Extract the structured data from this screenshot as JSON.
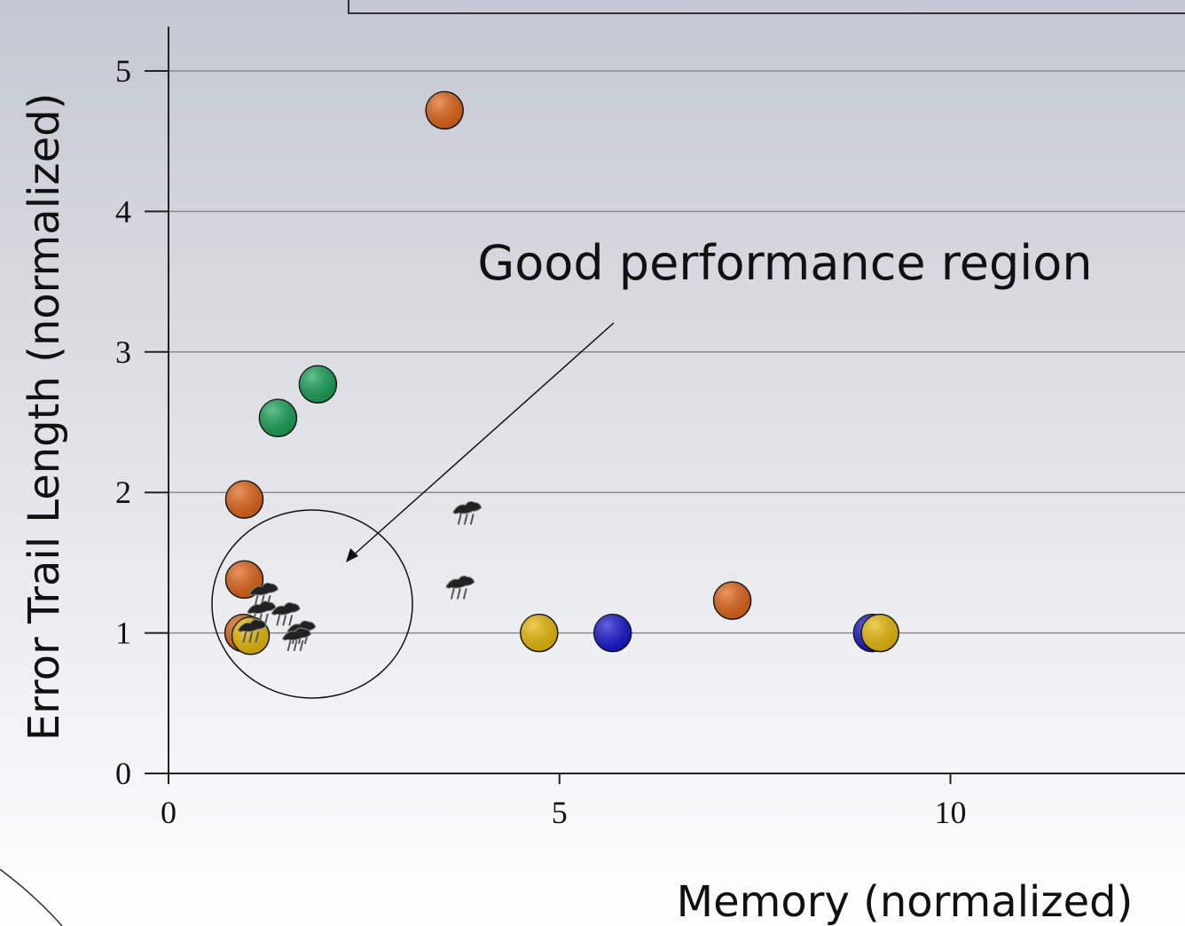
{
  "chart_data": {
    "type": "scatter",
    "x_label": "Memory (normalized)",
    "y_label": "Error Trail Length (normalized)",
    "annotation": "Good performance region",
    "xlim": [
      0,
      13
    ],
    "ylim": [
      0,
      5.3
    ],
    "xticks": [
      0,
      5,
      10
    ],
    "yticks": [
      0,
      1,
      2,
      3,
      4,
      5
    ],
    "grid": true,
    "series": [
      {
        "color": "#e06010",
        "marker": "circle",
        "x": [
          3.53,
          0.97,
          0.97,
          0.96,
          7.21
        ],
        "values": [
          4.72,
          1.95,
          1.38,
          1.0,
          1.23
        ]
      },
      {
        "color": "#10a050",
        "marker": "circle",
        "x": [
          1.4,
          1.91
        ],
        "values": [
          2.53,
          2.77
        ]
      },
      {
        "color": "#1010d0",
        "marker": "circle",
        "x": [
          5.68,
          9.0
        ],
        "values": [
          1.0,
          1.0
        ]
      },
      {
        "color": "#e8b800",
        "marker": "circle",
        "x": [
          1.05,
          4.74,
          9.1
        ],
        "values": [
          0.98,
          1.0,
          1.0
        ]
      },
      {
        "color": "#222222",
        "marker": "ant",
        "x": [
          3.82,
          3.73,
          1.22,
          1.19,
          1.5,
          1.07,
          1.7,
          1.64
        ],
        "values": [
          1.86,
          1.33,
          1.28,
          1.15,
          1.14,
          1.02,
          1.01,
          0.96
        ]
      }
    ]
  }
}
